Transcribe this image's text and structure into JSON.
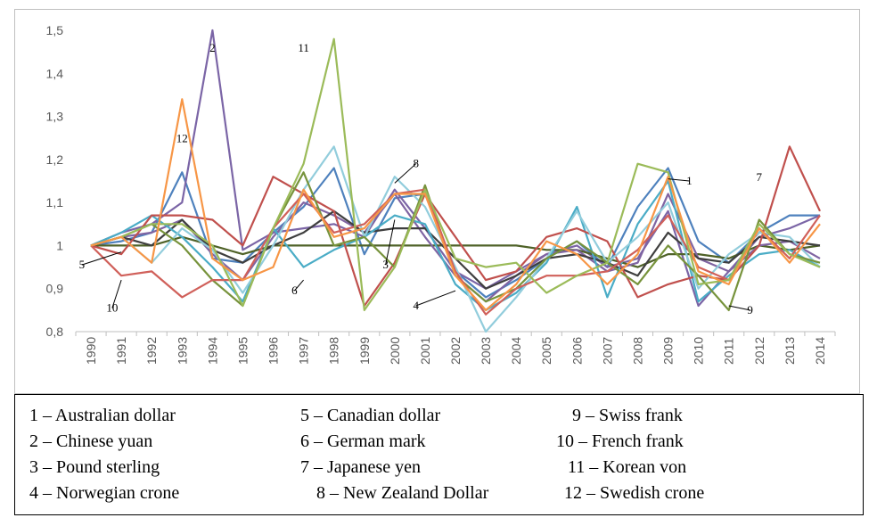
{
  "chart_data": {
    "type": "line",
    "ylim": [
      0.8,
      1.5
    ],
    "y_ticks": [
      "0,8",
      "0,9",
      "1",
      "1,1",
      "1,2",
      "1,3",
      "1,4",
      "1,5"
    ],
    "grid": false,
    "x": [
      "1990",
      "1991",
      "1992",
      "1993",
      "1994",
      "1995",
      "1996",
      "1997",
      "1998",
      "1999",
      "2000",
      "2001",
      "2002",
      "2003",
      "2004",
      "2005",
      "2006",
      "2007",
      "2008",
      "2009",
      "2010",
      "2011",
      "2012",
      "2013",
      "2014"
    ],
    "series": [
      {
        "key": "1",
        "color": "#4e81bd",
        "values": [
          1.0,
          1.01,
          1.03,
          1.17,
          0.97,
          0.96,
          1.03,
          1.09,
          1.18,
          0.98,
          1.11,
          1.12,
          0.94,
          0.88,
          0.92,
          0.97,
          1.01,
          0.95,
          1.09,
          1.18,
          1.01,
          0.96,
          1.03,
          1.07,
          1.07
        ]
      },
      {
        "key": "2",
        "color": "#7b65a6",
        "values": [
          1.0,
          1.03,
          1.05,
          1.1,
          1.5,
          0.99,
          1.03,
          1.04,
          1.05,
          1.02,
          1.13,
          1.04,
          0.94,
          0.9,
          0.94,
          0.98,
          1.0,
          0.95,
          0.97,
          1.08,
          0.86,
          0.94,
          1.02,
          1.04,
          1.07
        ]
      },
      {
        "key": "3",
        "color": "#4f6228",
        "values": [
          1.0,
          1.0,
          1.0,
          1.02,
          1.0,
          0.98,
          1.0,
          1.0,
          1.0,
          1.0,
          1.0,
          1.0,
          1.0,
          1.0,
          1.0,
          0.99,
          0.99,
          0.97,
          0.95,
          0.98,
          0.98,
          0.97,
          1.0,
          0.99,
          1.0
        ]
      },
      {
        "key": "4",
        "color": "#8064a2",
        "values": [
          1.0,
          1.02,
          1.03,
          1.06,
          0.98,
          0.92,
          1.02,
          1.1,
          1.07,
          1.03,
          1.12,
          1.02,
          0.93,
          0.87,
          0.93,
          0.98,
          0.99,
          0.94,
          0.96,
          1.12,
          0.97,
          0.94,
          1.0,
          1.01,
          0.97
        ]
      },
      {
        "key": "5",
        "color": "#3f3f3f",
        "values": [
          1.0,
          1.02,
          1.0,
          1.06,
          0.99,
          0.96,
          1.0,
          1.03,
          1.08,
          1.03,
          1.04,
          1.04,
          0.97,
          0.9,
          0.93,
          0.97,
          0.98,
          0.96,
          0.93,
          1.03,
          0.97,
          0.96,
          1.02,
          1.01,
          1.0
        ]
      },
      {
        "key": "6",
        "color": "#4aacc6",
        "values": [
          1.0,
          1.03,
          1.07,
          1.02,
          0.95,
          0.87,
          1.04,
          0.95,
          0.99,
          1.02,
          1.07,
          1.05,
          0.91,
          0.85,
          0.89,
          0.96,
          1.09,
          0.88,
          1.05,
          1.15,
          0.87,
          0.93,
          0.98,
          0.99,
          0.95
        ]
      },
      {
        "key": "7",
        "color": "#c0504d",
        "values": [
          1.0,
          0.98,
          1.07,
          1.07,
          1.06,
          1.0,
          1.16,
          1.12,
          1.08,
          0.86,
          0.96,
          1.12,
          1.02,
          0.92,
          0.94,
          1.02,
          1.04,
          1.01,
          0.88,
          0.91,
          0.93,
          0.92,
          1.0,
          1.23,
          1.08
        ]
      },
      {
        "key": "8",
        "color": "#92cddc",
        "values": [
          1.0,
          1.02,
          0.96,
          1.04,
          0.99,
          0.89,
          1.0,
          1.13,
          1.23,
          1.02,
          1.16,
          1.09,
          0.95,
          0.8,
          0.88,
          0.97,
          1.08,
          0.96,
          1.02,
          1.1,
          0.9,
          0.98,
          1.03,
          1.02,
          0.95
        ]
      },
      {
        "key": "9",
        "color": "#77933c",
        "values": [
          1.0,
          1.02,
          1.05,
          1.0,
          0.92,
          0.86,
          1.04,
          1.17,
          1.0,
          1.02,
          0.95,
          1.14,
          0.93,
          0.87,
          0.9,
          0.97,
          1.01,
          0.96,
          0.91,
          1.0,
          0.93,
          0.85,
          1.06,
          0.98,
          0.96
        ]
      },
      {
        "key": "10",
        "color": "#d0605a",
        "values": [
          1.0,
          0.93,
          0.94,
          0.88,
          0.92,
          0.92,
          1.04,
          1.12,
          1.03,
          1.05,
          1.12,
          1.13,
          0.94,
          0.84,
          0.9,
          0.93,
          0.93,
          0.94,
          0.99,
          1.07,
          0.95,
          0.92,
          1.04,
          0.97,
          1.07
        ]
      },
      {
        "key": "11",
        "color": "#9bbb59",
        "values": [
          1.0,
          1.02,
          1.05,
          1.05,
          1.0,
          0.86,
          1.04,
          1.19,
          1.48,
          0.85,
          0.95,
          1.13,
          0.97,
          0.95,
          0.96,
          0.89,
          0.93,
          0.96,
          1.19,
          1.17,
          0.91,
          0.92,
          1.05,
          0.98,
          0.95
        ]
      },
      {
        "key": "12",
        "color": "#f79646",
        "values": [
          1.0,
          1.02,
          0.96,
          1.34,
          0.97,
          0.92,
          0.95,
          1.13,
          1.02,
          1.04,
          1.12,
          1.12,
          0.93,
          0.85,
          0.91,
          1.01,
          0.98,
          0.91,
          0.98,
          1.16,
          0.94,
          0.91,
          1.04,
          0.96,
          1.05
        ]
      }
    ],
    "annotations": [
      {
        "text": "1",
        "x": "2009",
        "y": 1.155,
        "lx": "2010",
        "ly": 1.15
      },
      {
        "text": "2",
        "x": "1994",
        "y": 1.45
      },
      {
        "text": "3",
        "x": "2000",
        "y": 1.06,
        "lx": "2000",
        "ly": 0.955
      },
      {
        "text": "4",
        "x": "2002",
        "y": 0.895,
        "lx": "2001",
        "ly": 0.86
      },
      {
        "text": "5",
        "x": "1991",
        "y": 0.985,
        "lx": "1990",
        "ly": 0.955
      },
      {
        "text": "6",
        "x": "1997",
        "y": 0.92,
        "lx": "1997",
        "ly": 0.895
      },
      {
        "text": "7",
        "x": "2012",
        "y": 1.15
      },
      {
        "text": "8",
        "x": "2000",
        "y": 1.145,
        "lx": "2001",
        "ly": 1.19
      },
      {
        "text": "9",
        "x": "2011",
        "y": 0.86,
        "lx": "2012",
        "ly": 0.85
      },
      {
        "text": "10",
        "x": "1991",
        "y": 0.92,
        "lx": "1991",
        "ly": 0.855
      },
      {
        "text": "11",
        "x": "1997",
        "y": 1.45
      },
      {
        "text": "12",
        "x": "1993",
        "y": 1.24
      }
    ]
  },
  "legend": [
    {
      "label": "1 – Australian dollar"
    },
    {
      "label": "2 – Chinese yuan"
    },
    {
      "label": "3 – Pound sterling"
    },
    {
      "label": "4 – Norwegian crone"
    },
    {
      "label": "5 – Canadian dollar"
    },
    {
      "label": "6 – German mark"
    },
    {
      "label": "7 – Japanese yen"
    },
    {
      "label": "8 – New Zealand Dollar"
    },
    {
      "label": "9 – Swiss frank"
    },
    {
      "label": "10 – French frank"
    },
    {
      "label": "11 – Korean von"
    },
    {
      "label": "12 – Swedish crone"
    }
  ]
}
